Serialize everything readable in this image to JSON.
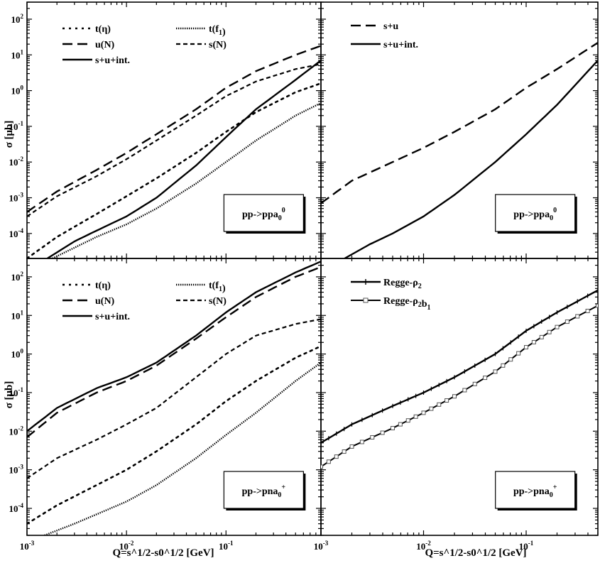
{
  "figure": {
    "y_axis_label": "σ [μb]",
    "x_axis_label": "Q=s^1/2-s0^1/2 [GeV]",
    "x_tick_labels": [
      "10^-3",
      "10^-2",
      "10^-1"
    ],
    "y_tick_labels": [
      "10^2",
      "10^1",
      "10^0",
      "10^-1",
      "10^-2",
      "10^-3",
      "10^-4"
    ]
  },
  "chart_data": [
    {
      "type": "line",
      "panel": "top-left",
      "annotation": "pp->ppa0^0",
      "xscale": "log",
      "yscale": "log",
      "xlim": [
        0.001,
        0.9
      ],
      "ylim": [
        2e-05,
        300
      ],
      "legend_position": "top-left",
      "series": [
        {
          "name": "t(η)",
          "style": "dotted",
          "x": [
            0.001,
            0.002,
            0.005,
            0.01,
            0.02,
            0.05,
            0.1,
            0.2,
            0.5,
            0.9
          ],
          "y": [
            2e-05,
            8e-05,
            0.00035,
            0.0011,
            0.0035,
            0.018,
            0.07,
            0.25,
            0.9,
            1.6
          ]
        },
        {
          "name": "t(f1)",
          "style": "dense-dotted",
          "x": [
            0.0018,
            0.003,
            0.005,
            0.01,
            0.02,
            0.05,
            0.1,
            0.2,
            0.5,
            0.9
          ],
          "y": [
            2e-05,
            4e-05,
            8e-05,
            0.00018,
            0.0005,
            0.0025,
            0.01,
            0.04,
            0.2,
            0.45
          ]
        },
        {
          "name": "u(N)",
          "style": "long-dash",
          "x": [
            0.001,
            0.002,
            0.005,
            0.01,
            0.02,
            0.05,
            0.1,
            0.2,
            0.5,
            0.9
          ],
          "y": [
            0.0004,
            0.0015,
            0.006,
            0.018,
            0.06,
            0.3,
            1.2,
            3.5,
            10,
            18
          ]
        },
        {
          "name": "s(N)",
          "style": "short-dash",
          "x": [
            0.001,
            0.002,
            0.005,
            0.01,
            0.02,
            0.05,
            0.1,
            0.2,
            0.5,
            0.9
          ],
          "y": [
            0.0003,
            0.0011,
            0.004,
            0.012,
            0.04,
            0.2,
            0.7,
            1.8,
            4,
            5.5
          ]
        },
        {
          "name": "s+u+int.",
          "style": "solid",
          "x": [
            0.0016,
            0.003,
            0.005,
            0.01,
            0.02,
            0.05,
            0.1,
            0.2,
            0.5,
            0.9
          ],
          "y": [
            2e-05,
            6e-05,
            0.00012,
            0.0003,
            0.001,
            0.008,
            0.05,
            0.3,
            2,
            7
          ]
        }
      ]
    },
    {
      "type": "line",
      "panel": "top-right",
      "annotation": "pp->ppa0^0",
      "xscale": "log",
      "yscale": "log",
      "xlim": [
        0.001,
        0.5
      ],
      "ylim": [
        2e-05,
        300
      ],
      "legend_position": "top-left",
      "series": [
        {
          "name": "s+u",
          "style": "long-dash",
          "x": [
            0.001,
            0.002,
            0.005,
            0.01,
            0.02,
            0.05,
            0.1,
            0.2,
            0.5
          ],
          "y": [
            0.0007,
            0.003,
            0.01,
            0.025,
            0.07,
            0.3,
            1.2,
            4,
            22
          ]
        },
        {
          "name": "s+u+int.",
          "style": "solid",
          "x": [
            0.0017,
            0.003,
            0.005,
            0.01,
            0.02,
            0.05,
            0.1,
            0.2,
            0.5
          ],
          "y": [
            2e-05,
            5e-05,
            0.0001,
            0.0003,
            0.0012,
            0.01,
            0.06,
            0.4,
            7
          ]
        }
      ]
    },
    {
      "type": "line",
      "panel": "bottom-left",
      "annotation": "pp->pna0^+",
      "xscale": "log",
      "yscale": "log",
      "xlim": [
        0.001,
        0.9
      ],
      "ylim": [
        2e-05,
        300
      ],
      "legend_position": "top-left",
      "series": [
        {
          "name": "t(η)",
          "style": "dotted",
          "x": [
            0.001,
            0.002,
            0.005,
            0.01,
            0.02,
            0.05,
            0.1,
            0.2,
            0.5,
            0.9
          ],
          "y": [
            4e-05,
            0.00012,
            0.0004,
            0.001,
            0.003,
            0.015,
            0.06,
            0.2,
            0.8,
            1.6
          ]
        },
        {
          "name": "t(f1)",
          "style": "dense-dotted",
          "x": [
            0.0015,
            0.003,
            0.005,
            0.01,
            0.02,
            0.05,
            0.1,
            0.2,
            0.5,
            0.9
          ],
          "y": [
            2e-05,
            4e-05,
            7e-05,
            0.00015,
            0.0004,
            0.002,
            0.008,
            0.03,
            0.2,
            0.6
          ]
        },
        {
          "name": "u(N)",
          "style": "long-dash",
          "x": [
            0.001,
            0.002,
            0.005,
            0.01,
            0.02,
            0.05,
            0.1,
            0.2,
            0.5,
            0.9
          ],
          "y": [
            0.007,
            0.03,
            0.1,
            0.2,
            0.5,
            2.5,
            9,
            30,
            100,
            180
          ]
        },
        {
          "name": "s(N)",
          "style": "short-dash",
          "x": [
            0.001,
            0.002,
            0.005,
            0.01,
            0.02,
            0.05,
            0.1,
            0.2,
            0.5,
            0.9
          ],
          "y": [
            0.0006,
            0.002,
            0.006,
            0.015,
            0.04,
            0.25,
            1,
            3,
            6,
            8
          ]
        },
        {
          "name": "s+u+int.",
          "style": "solid",
          "x": [
            0.001,
            0.002,
            0.005,
            0.01,
            0.02,
            0.05,
            0.1,
            0.2,
            0.5,
            0.9
          ],
          "y": [
            0.01,
            0.04,
            0.13,
            0.25,
            0.6,
            3,
            12,
            40,
            130,
            250
          ]
        }
      ]
    },
    {
      "type": "line",
      "panel": "bottom-right",
      "annotation": "pp->pna0^+",
      "xscale": "log",
      "yscale": "log",
      "xlim": [
        0.001,
        0.5
      ],
      "ylim": [
        2e-05,
        300
      ],
      "legend_position": "top-left",
      "series": [
        {
          "name": "Regge-ρ2",
          "style": "solid-plus",
          "x": [
            0.001,
            0.002,
            0.005,
            0.01,
            0.02,
            0.05,
            0.1,
            0.2,
            0.5
          ],
          "y": [
            0.005,
            0.015,
            0.045,
            0.1,
            0.25,
            1,
            4,
            12,
            45
          ]
        },
        {
          "name": "Regge-ρ2b1",
          "style": "solid-square",
          "x": [
            0.001,
            0.002,
            0.005,
            0.01,
            0.02,
            0.05,
            0.1,
            0.2,
            0.5
          ],
          "y": [
            0.0012,
            0.004,
            0.012,
            0.03,
            0.08,
            0.35,
            1.5,
            5,
            18
          ]
        }
      ]
    }
  ]
}
